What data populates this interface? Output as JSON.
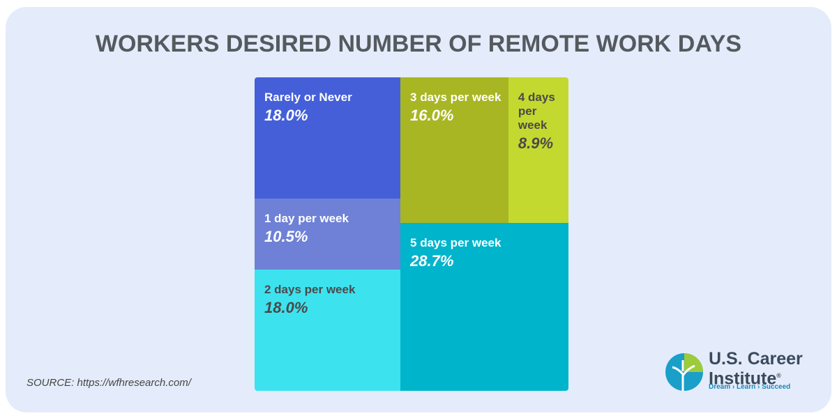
{
  "chart_data": {
    "type": "treemap",
    "title": "WORKERS DESIRED NUMBER OF REMOTE WORK DAYS",
    "categories": [
      "Rarely or Never",
      "1 day per week",
      "2 days per week",
      "3 days per week",
      "4 days per week",
      "5 days per week"
    ],
    "values": [
      18,
      10.5,
      18,
      16,
      8.9,
      28.7
    ],
    "value_labels": [
      "18.0%",
      "10.5%",
      "18.0%",
      "16.0%",
      "8.9%",
      "28.7%"
    ],
    "colors": [
      "#455fd9",
      "#6e81d6",
      "#3de2ef",
      "#a8b623",
      "#c3d92f",
      "#00b4cb"
    ],
    "source": "SOURCE: https://wfhresearch.com/"
  },
  "logo": {
    "name": "U.S. Career Institute",
    "mark": "®",
    "tagline": "Dream › Learn › Succeed"
  }
}
